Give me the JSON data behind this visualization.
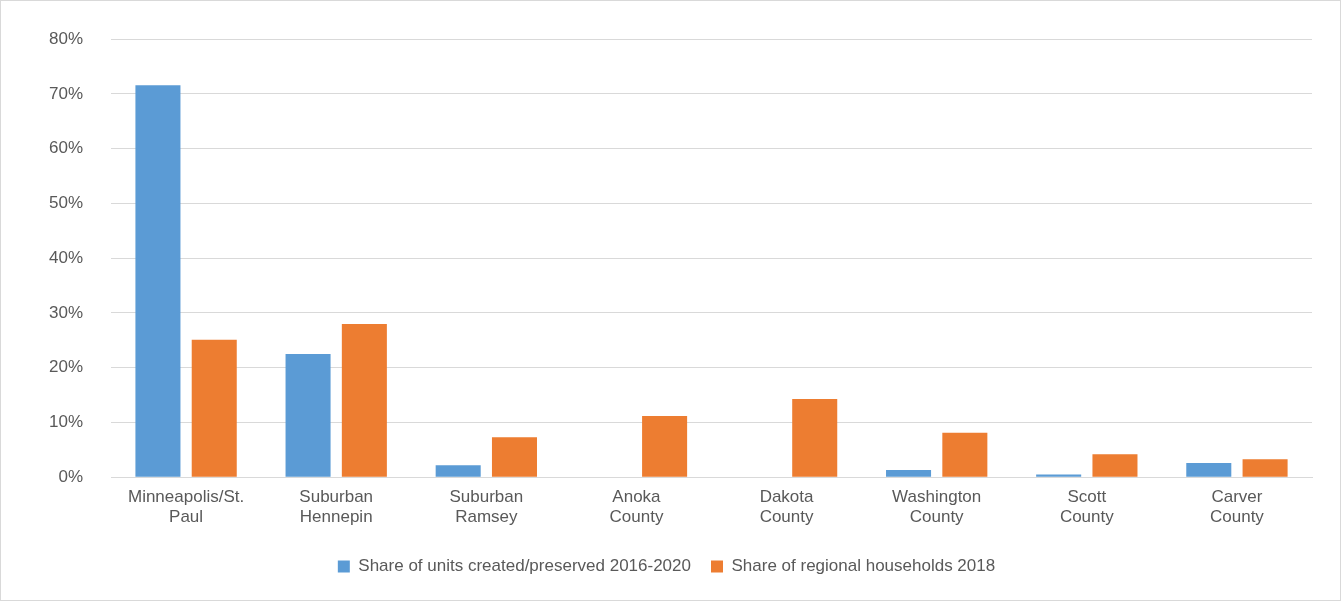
{
  "chart_data": {
    "type": "bar",
    "categories": [
      "Minneapolis/St. Paul",
      "Suburban Hennepin",
      "Suburban Ramsey",
      "Anoka County",
      "Dakota County",
      "Washington County",
      "Scott County",
      "Carver County"
    ],
    "series": [
      {
        "name": "Share of units created/preserved 2016-2020",
        "color": "#5b9bd5",
        "values": [
          71.6,
          22.5,
          2.2,
          0,
          0,
          1.3,
          0.5,
          2.6
        ]
      },
      {
        "name": "Share of regional households 2018",
        "color": "#ed7d31",
        "values": [
          25.1,
          28.0,
          7.3,
          11.2,
          14.3,
          8.1,
          4.2,
          3.3
        ]
      }
    ],
    "ylim": [
      0,
      80
    ],
    "yticks": [
      {
        "value": 0,
        "label": "0%"
      },
      {
        "value": 10,
        "label": "10%"
      },
      {
        "value": 20,
        "label": "20%"
      },
      {
        "value": 30,
        "label": "30%"
      },
      {
        "value": 40,
        "label": "40%"
      },
      {
        "value": 50,
        "label": "50%"
      },
      {
        "value": 60,
        "label": "60%"
      },
      {
        "value": 70,
        "label": "70%"
      },
      {
        "value": 80,
        "label": "80%"
      }
    ],
    "grid": "y",
    "legend": "bottom"
  }
}
